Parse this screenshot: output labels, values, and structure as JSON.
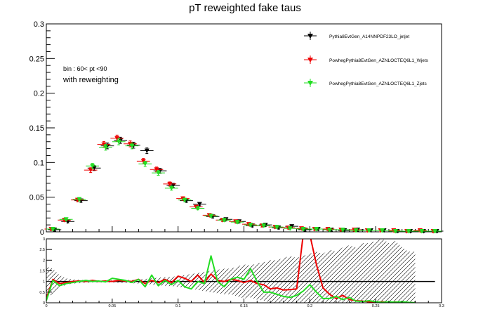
{
  "chart_data": [
    {
      "type": "scatter",
      "title": "pT reweighted fake taus",
      "xlabel": "",
      "ylabel": "",
      "xlim": [
        0,
        0.3
      ],
      "ylim": [
        0,
        0.3
      ],
      "y_ticks": [
        0,
        0.05,
        0.1,
        0.15,
        0.2,
        0.25,
        0.3
      ],
      "y_tick_labels": [
        "0",
        "0.05",
        "0.1",
        "0.15",
        "0.2",
        "0.25",
        "0.3"
      ],
      "legend_position": "top-right",
      "annotations": [
        "bin : 60< pt <90",
        "with reweighting"
      ],
      "x": [
        0.005,
        0.015,
        0.025,
        0.035,
        0.045,
        0.055,
        0.065,
        0.075,
        0.085,
        0.095,
        0.105,
        0.115,
        0.125,
        0.135,
        0.145,
        0.155,
        0.165,
        0.175,
        0.185,
        0.195,
        0.205,
        0.215,
        0.225,
        0.235,
        0.245,
        0.255,
        0.265,
        0.275,
        0.285,
        0.295
      ],
      "series": [
        {
          "name": "Pythia8EvtGen_A14NNPDF23LO_jetjet",
          "color": "#000000",
          "marker": "triangle-down",
          "values": [
            0.003,
            0.015,
            0.045,
            0.092,
            0.124,
            0.132,
            0.125,
            0.117,
            0.088,
            0.067,
            0.045,
            0.04,
            0.022,
            0.018,
            0.015,
            0.009,
            0.01,
            0.006,
            0.008,
            0.003,
            0.004,
            0.003,
            0.002,
            0.003,
            0.002,
            0.002,
            0.001,
            0.001,
            0.001,
            0.001
          ]
        },
        {
          "name": "PowhegPythia8EvtGen_AZNLOCTEQ6L1_Wjets",
          "color": "#ee0000",
          "marker": "triangle-down",
          "values": [
            0.004,
            0.017,
            0.046,
            0.089,
            0.126,
            0.135,
            0.127,
            0.102,
            0.09,
            0.069,
            0.048,
            0.036,
            0.024,
            0.017,
            0.015,
            0.011,
            0.009,
            0.007,
            0.006,
            0.005,
            0.004,
            0.004,
            0.003,
            0.003,
            0.002,
            0.002,
            0.002,
            0.001,
            0.002,
            0.001
          ]
        },
        {
          "name": "PowhegPythia8EvtGen_AZNLOCTEQ6L1_Zjets",
          "color": "#22dd22",
          "marker": "triangle-down",
          "values": [
            0.004,
            0.018,
            0.047,
            0.095,
            0.122,
            0.13,
            0.124,
            0.098,
            0.085,
            0.063,
            0.046,
            0.034,
            0.023,
            0.017,
            0.014,
            0.01,
            0.009,
            0.007,
            0.005,
            0.004,
            0.004,
            0.003,
            0.003,
            0.002,
            0.002,
            0.002,
            0.001,
            0.001,
            0.001,
            0.001
          ]
        }
      ]
    },
    {
      "type": "line",
      "title": "",
      "xlabel": "",
      "ylabel": "",
      "xlim": [
        0,
        0.3
      ],
      "ylim": [
        0,
        3
      ],
      "x_ticks": [
        0,
        0.05,
        0.1,
        0.15,
        0.2,
        0.25,
        0.3
      ],
      "x_tick_labels": [
        "0",
        "0.05",
        "0.1",
        "0.15",
        "0.2",
        "0.25",
        "0.3"
      ],
      "y_ticks": [
        0,
        0.5,
        1,
        1.5,
        2,
        2.5,
        3
      ],
      "y_tick_labels": [
        "0",
        "0.5",
        "1",
        "1.5",
        "2",
        "2.5",
        "3"
      ],
      "reference_line": 1,
      "x": [
        0,
        0.005,
        0.01,
        0.015,
        0.02,
        0.025,
        0.03,
        0.035,
        0.04,
        0.045,
        0.05,
        0.055,
        0.06,
        0.065,
        0.07,
        0.075,
        0.08,
        0.085,
        0.09,
        0.095,
        0.1,
        0.105,
        0.11,
        0.115,
        0.12,
        0.125,
        0.13,
        0.135,
        0.14,
        0.145,
        0.15,
        0.155,
        0.16,
        0.165,
        0.17,
        0.175,
        0.18,
        0.185,
        0.19,
        0.195,
        0.2,
        0.205,
        0.21,
        0.215,
        0.22,
        0.225,
        0.23,
        0.235,
        0.24,
        0.245,
        0.25,
        0.255,
        0.26,
        0.265,
        0.27,
        0.275,
        0.28
      ],
      "uncertainty_band": {
        "upper": [
          1.7,
          1.6,
          1.3,
          1.15,
          1.1,
          1.08,
          1.06,
          1.05,
          1.05,
          1.05,
          1.05,
          1.06,
          1.07,
          1.08,
          1.1,
          1.12,
          1.15,
          1.18,
          1.2,
          1.22,
          1.25,
          1.3,
          1.35,
          1.4,
          1.45,
          1.5,
          1.55,
          1.6,
          1.6,
          1.7,
          1.8,
          1.75,
          1.85,
          1.9,
          2.0,
          2.0,
          2.1,
          2.2,
          2.1,
          2.2,
          2.3,
          2.4,
          2.3,
          2.5,
          2.4,
          2.6,
          2.7,
          2.6,
          2.8,
          2.8,
          2.9,
          3.0,
          2.8,
          2.9,
          2.6,
          2.4,
          2.4
        ],
        "lower": [
          0.3,
          0.4,
          0.7,
          0.85,
          0.9,
          0.92,
          0.94,
          0.95,
          0.95,
          0.95,
          0.95,
          0.94,
          0.93,
          0.92,
          0.9,
          0.88,
          0.85,
          0.82,
          0.8,
          0.78,
          0.75,
          0.7,
          0.65,
          0.6,
          0.55,
          0.5,
          0.45,
          0.4,
          0.4,
          0.3,
          0.2,
          0.25,
          0.15,
          0.1,
          0.0,
          0.0,
          0.0,
          0.0,
          0.0,
          0.0,
          0.0,
          0.0,
          0.0,
          0.0,
          0.0,
          0.0,
          0.0,
          0.0,
          0.0,
          0.0,
          0.0,
          0.0,
          0.0,
          0.0,
          0.0,
          0.0,
          0.0
        ]
      },
      "series": [
        {
          "name": "PowhegPythia8EvtGen_AZNLOCTEQ6L1_Wjets",
          "color": "#ee0000",
          "values": [
            0.2,
            1.1,
            0.9,
            0.95,
            1.0,
            1.02,
            1.0,
            1.05,
            1.0,
            1.02,
            1.0,
            1.05,
            1.02,
            1.0,
            1.1,
            0.9,
            1.05,
            0.95,
            1.1,
            0.95,
            1.25,
            1.15,
            1.0,
            1.3,
            0.95,
            1.35,
            1.05,
            1.0,
            1.1,
            1.05,
            0.95,
            1.05,
            0.9,
            0.85,
            0.65,
            0.7,
            0.6,
            0.62,
            0.65,
            3.2,
            3.2,
            1.8,
            0.7,
            0.4,
            0.2,
            0.35,
            0.15,
            0.1,
            0.08,
            0.05,
            0.03,
            0.05,
            0.02,
            0.04,
            0.02,
            0.01,
            0.0
          ]
        },
        {
          "name": "PowhegPythia8EvtGen_AZNLOCTEQ6L1_Zjets",
          "color": "#22dd22",
          "values": [
            0.1,
            1.05,
            0.8,
            0.9,
            0.95,
            1.0,
            1.05,
            1.0,
            1.02,
            0.98,
            1.15,
            1.1,
            1.05,
            0.95,
            1.1,
            0.75,
            1.3,
            0.8,
            1.05,
            0.85,
            1.05,
            0.75,
            0.65,
            1.0,
            0.9,
            2.2,
            1.0,
            0.75,
            1.1,
            1.2,
            1.1,
            1.6,
            1.0,
            0.5,
            0.5,
            0.4,
            0.3,
            0.25,
            0.35,
            0.55,
            0.85,
            0.5,
            0.2,
            0.2,
            0.3,
            0.15,
            0.25,
            0.08,
            0.06,
            0.1,
            0.05,
            0.02,
            0.04,
            0.03,
            0.05,
            0.02,
            0.0
          ]
        }
      ]
    }
  ]
}
